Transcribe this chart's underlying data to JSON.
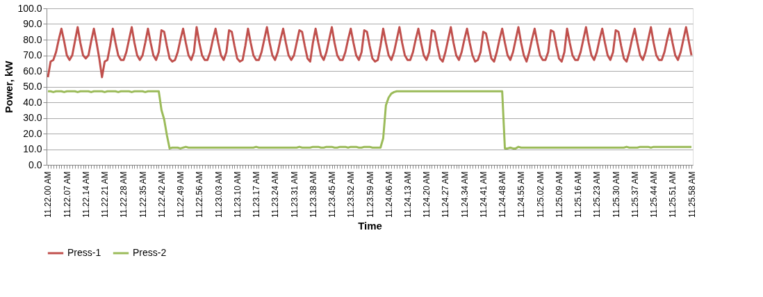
{
  "chart_data": {
    "type": "line",
    "xlabel": "Time",
    "ylabel": "Power, kW",
    "categories": [
      "11.22.00 AM",
      null,
      null,
      null,
      null,
      null,
      null,
      "11.22.07 AM",
      null,
      null,
      null,
      null,
      null,
      null,
      "11.22.14 AM",
      null,
      null,
      null,
      null,
      null,
      null,
      "11.22.21 AM",
      null,
      null,
      null,
      null,
      null,
      null,
      "11.22.28 AM",
      null,
      null,
      null,
      null,
      null,
      null,
      "11.22.35 AM",
      null,
      null,
      null,
      null,
      null,
      null,
      "11.22.42 AM",
      null,
      null,
      null,
      null,
      null,
      null,
      "11.22.49 AM",
      null,
      null,
      null,
      null,
      null,
      null,
      "11.22.56 AM",
      null,
      null,
      null,
      null,
      null,
      null,
      "11.23.03 AM",
      null,
      null,
      null,
      null,
      null,
      null,
      "11.23.10 AM",
      null,
      null,
      null,
      null,
      null,
      null,
      "11.23.17 AM",
      null,
      null,
      null,
      null,
      null,
      null,
      "11.23.24 AM",
      null,
      null,
      null,
      null,
      null,
      null,
      "11.23.31 AM",
      null,
      null,
      null,
      null,
      null,
      null,
      "11.23.38 AM",
      null,
      null,
      null,
      null,
      null,
      null,
      "11.23.45 AM",
      null,
      null,
      null,
      null,
      null,
      null,
      "11.23.52 AM",
      null,
      null,
      null,
      null,
      null,
      null,
      "11.23.59 AM",
      null,
      null,
      null,
      null,
      null,
      null,
      "11.24.06 AM",
      null,
      null,
      null,
      null,
      null,
      null,
      "11.24.13 AM",
      null,
      null,
      null,
      null,
      null,
      null,
      "11.24.20 AM",
      null,
      null,
      null,
      null,
      null,
      null,
      "11.24.27 AM",
      null,
      null,
      null,
      null,
      null,
      null,
      "11.24.34 AM",
      null,
      null,
      null,
      null,
      null,
      null,
      "11.24.41 AM",
      null,
      null,
      null,
      null,
      null,
      null,
      "11.24.48 AM",
      null,
      null,
      null,
      null,
      null,
      null,
      "11.24.55 AM",
      null,
      null,
      null,
      null,
      null,
      null,
      "11.25.02 AM",
      null,
      null,
      null,
      null,
      null,
      null,
      "11.25.09 AM",
      null,
      null,
      null,
      null,
      null,
      null,
      "11.25.16 AM",
      null,
      null,
      null,
      null,
      null,
      null,
      "11.25.23 AM",
      null,
      null,
      null,
      null,
      null,
      null,
      "11.25.30 AM",
      null,
      null,
      null,
      null,
      null,
      null,
      "11.25.37 AM",
      null,
      null,
      null,
      null,
      null,
      null,
      "11.25.44 AM",
      null,
      null,
      null,
      null,
      null,
      null,
      "11.25.51 AM",
      null,
      null,
      null,
      null,
      null,
      null,
      "11.25.58 AM"
    ],
    "series": [
      {
        "name": "Press-1",
        "color": "#c0504d",
        "values": [
          56,
          66,
          67,
          72,
          80,
          87,
          79,
          70,
          67,
          70,
          79,
          88,
          78,
          70,
          68,
          70,
          79,
          87,
          78,
          68,
          56,
          66,
          67,
          76,
          87,
          78,
          70,
          67,
          67,
          72,
          80,
          88,
          78,
          70,
          67,
          70,
          78,
          87,
          78,
          70,
          67,
          72,
          86,
          85,
          76,
          68,
          66,
          67,
          72,
          80,
          87,
          78,
          70,
          67,
          72,
          88,
          78,
          70,
          67,
          67,
          72,
          80,
          87,
          78,
          70,
          67,
          72,
          86,
          85,
          76,
          68,
          66,
          67,
          76,
          87,
          78,
          70,
          67,
          67,
          72,
          80,
          88,
          78,
          70,
          67,
          72,
          80,
          87,
          78,
          70,
          67,
          70,
          78,
          86,
          85,
          76,
          68,
          66,
          78,
          87,
          78,
          70,
          67,
          72,
          80,
          88,
          78,
          70,
          67,
          67,
          72,
          80,
          87,
          78,
          70,
          67,
          72,
          86,
          85,
          76,
          68,
          66,
          67,
          76,
          87,
          78,
          70,
          67,
          72,
          80,
          88,
          78,
          70,
          67,
          67,
          72,
          80,
          87,
          78,
          70,
          67,
          72,
          86,
          85,
          76,
          68,
          66,
          72,
          80,
          88,
          78,
          70,
          67,
          72,
          80,
          87,
          78,
          70,
          66,
          67,
          72,
          85,
          84,
          76,
          68,
          66,
          72,
          80,
          87,
          78,
          70,
          67,
          72,
          80,
          88,
          78,
          70,
          66,
          72,
          80,
          87,
          78,
          70,
          67,
          67,
          72,
          86,
          85,
          76,
          68,
          66,
          72,
          87,
          78,
          70,
          67,
          67,
          72,
          80,
          88,
          78,
          70,
          67,
          72,
          80,
          87,
          78,
          70,
          67,
          72,
          86,
          85,
          76,
          68,
          66,
          72,
          80,
          87,
          78,
          70,
          67,
          72,
          80,
          88,
          78,
          70,
          67,
          67,
          72,
          80,
          87,
          78,
          70,
          67,
          72,
          80,
          88,
          79,
          70
        ]
      },
      {
        "name": "Press-2",
        "color": "#9bbb59",
        "values": [
          47,
          47,
          46.5,
          47,
          47,
          47,
          46.5,
          47,
          47,
          47,
          47,
          46.5,
          47,
          47,
          47,
          47,
          46.5,
          47,
          47,
          47,
          47,
          46.5,
          47,
          47,
          47,
          47,
          46.5,
          47,
          47,
          47,
          47,
          46.5,
          47,
          47,
          47,
          47,
          46.5,
          47,
          47,
          47,
          47,
          47,
          35,
          29,
          19,
          10.5,
          11,
          11,
          11,
          10.5,
          11,
          11.5,
          11,
          11,
          11,
          11,
          11,
          11,
          11,
          11,
          11,
          11,
          11,
          11,
          11,
          11,
          11,
          11,
          11,
          11,
          11,
          11,
          11,
          11,
          11,
          11,
          11,
          11.5,
          11,
          11,
          11,
          11,
          11,
          11,
          11,
          11,
          11,
          11,
          11,
          11,
          11,
          11,
          11,
          11.5,
          11,
          11,
          11,
          11,
          11.5,
          11.5,
          11.5,
          11,
          11,
          11.5,
          11.5,
          11.5,
          11,
          11,
          11.5,
          11.5,
          11.5,
          11,
          11.5,
          11.5,
          11.5,
          11,
          11,
          11.5,
          11.5,
          11.5,
          11,
          11,
          11,
          11,
          17,
          38,
          43,
          45.5,
          46.5,
          47,
          47,
          47,
          47,
          47,
          47,
          47,
          47,
          47,
          47,
          47,
          47,
          47,
          47,
          47,
          47,
          47,
          47,
          47,
          47,
          47,
          47,
          47,
          47,
          47,
          47,
          47,
          47,
          47,
          47,
          47,
          47,
          47,
          47,
          47,
          47,
          47,
          47,
          47,
          47,
          10.5,
          10.5,
          11,
          10.5,
          10.5,
          11.5,
          11,
          11,
          11,
          11,
          11,
          11,
          11,
          11,
          11,
          11,
          11,
          11,
          11,
          11,
          11,
          11,
          11,
          11,
          11,
          11,
          11,
          11,
          11,
          11,
          11,
          11,
          11,
          11,
          11,
          11,
          11,
          11,
          11,
          11,
          11,
          11,
          11,
          11,
          11,
          11.5,
          11,
          11,
          11,
          11,
          11.5,
          11.5,
          11.5,
          11.5,
          11,
          11.5,
          11.5,
          11.5,
          11.5,
          11.5,
          11.5,
          11.5,
          11.5,
          11.5,
          11.5,
          11.5,
          11.5,
          11.5,
          11.5,
          11.5
        ]
      }
    ],
    "ylim": [
      0,
      100
    ],
    "yticks": [
      {
        "value": 0,
        "label": "0.0"
      },
      {
        "value": 10,
        "label": "10.0"
      },
      {
        "value": 20,
        "label": "20.0"
      },
      {
        "value": 30,
        "label": "30.0"
      },
      {
        "value": 40,
        "label": "40.0"
      },
      {
        "value": 50,
        "label": "50.0"
      },
      {
        "value": 60,
        "label": "60.0"
      },
      {
        "value": 70,
        "label": "70.0"
      },
      {
        "value": 80,
        "label": "80.0"
      },
      {
        "value": 90,
        "label": "90.0"
      },
      {
        "value": 100,
        "label": "100.0"
      }
    ],
    "grid": "y",
    "legend": "bottom",
    "line_style": "solid"
  }
}
